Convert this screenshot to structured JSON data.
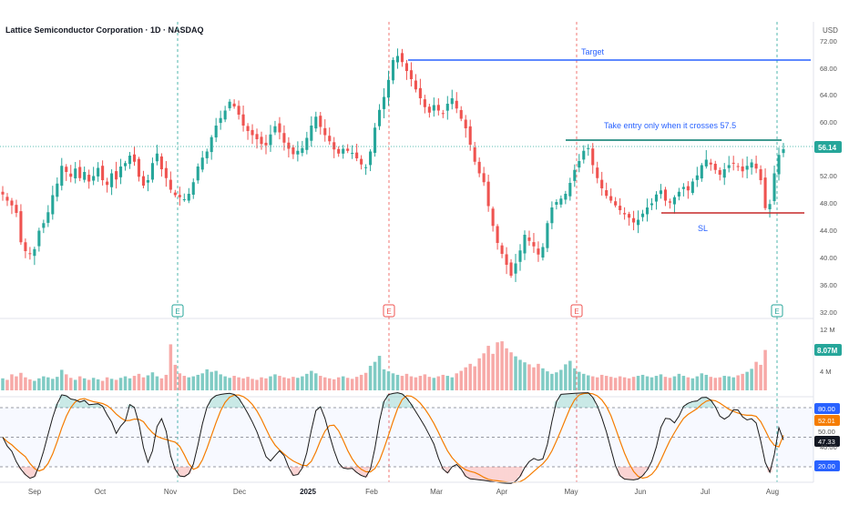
{
  "header": {
    "title": "Lattice Semiconductor Corporation · 1D · NASDAQ",
    "currency": "USD"
  },
  "colors": {
    "up": "#26a69a",
    "down": "#ef5350",
    "vol_up": "#80cbc4",
    "vol_down": "#f7a9a7",
    "target_line": "#2962ff",
    "entry_line": "#00796b",
    "sl_line": "#c62828",
    "annotation_text": "#2962ff",
    "price_badge": "#26a69a",
    "stoch_k": "#1a1a1a",
    "stoch_d": "#f57c00",
    "earnings_green": "#26a69a",
    "earnings_red": "#ef5350",
    "band_badge": "#2962ff"
  },
  "annotations": {
    "target_label": "Target",
    "entry_label": "Take entry only when it crosses 57.5",
    "sl_label": "SL"
  },
  "price_axis": {
    "ticks": [
      "72.00",
      "68.00",
      "64.00",
      "60.00",
      "56.00",
      "52.00",
      "48.00",
      "44.00",
      "40.00",
      "36.00",
      "32.00"
    ],
    "last_price": "56.14"
  },
  "volume_axis": {
    "ticks": [
      "12 M",
      "4 M"
    ],
    "last_volume": "8.07M"
  },
  "stoch_axis": {
    "upper_band": "80.00",
    "lower_band": "20.00",
    "tick_40": "40.00",
    "k_value": "47.33",
    "d_value": "52.01",
    "mid_value": "50.00"
  },
  "earnings_markers": [
    {
      "letter": "E",
      "color": "green"
    },
    {
      "letter": "E",
      "color": "red"
    },
    {
      "letter": "E",
      "color": "red"
    },
    {
      "letter": "E",
      "color": "green"
    }
  ],
  "time_axis": [
    "Sep",
    "Oct",
    "Nov",
    "Dec",
    "2025",
    "Feb",
    "Mar",
    "Apr",
    "May",
    "Jun",
    "Jul",
    "Aug"
  ],
  "chart_data": {
    "type": "candlestick",
    "title": "Lattice Semiconductor Corporation · 1D · NASDAQ",
    "y_unit": "USD",
    "price_range": [
      32,
      73
    ],
    "levels": {
      "target": 69,
      "entry": 57.5,
      "stop_loss": 46.5
    },
    "last_close": 56.14,
    "last_volume_millions": 8.07,
    "stochastic": {
      "k_last": 47.33,
      "d_last": 52.01,
      "upper": 80,
      "lower": 20
    },
    "series": [
      {
        "name": "price",
        "values": [
          49.5,
          48.6,
          47.9,
          46.8,
          42.5,
          41.2,
          40.8,
          41.5,
          44.2,
          45.3,
          46.9,
          49.4,
          51.1,
          53.7,
          52.8,
          52.1,
          53.3,
          51.9,
          52.8,
          51.4,
          52.2,
          53.4,
          51.6,
          50.9,
          52.6,
          51.7,
          53.6,
          54.1,
          55.2,
          54.3,
          52.1,
          50.8,
          51.6,
          54.1,
          55.5,
          53.2,
          51.9,
          50.2,
          49.4,
          49.1,
          48.8,
          49.6,
          51.3,
          53.6,
          54.9,
          55.8,
          57.9,
          59.6,
          60.7,
          61.8,
          63.1,
          62.4,
          61.2,
          59.6,
          58.8,
          58.2,
          57.6,
          56.9,
          56.7,
          58.3,
          59.5,
          58.6,
          57.1,
          56.2,
          55.4,
          55.9,
          56.3,
          57.8,
          59.6,
          60.9,
          59.4,
          58.2,
          57.3,
          56.1,
          55.5,
          56.2,
          55.9,
          55.6,
          54.8,
          53.9,
          53.5,
          55.8,
          59.3,
          61.9,
          63.8,
          66.3,
          69.2,
          69.8,
          68.9,
          67.6,
          66.4,
          64.9,
          63.6,
          62.3,
          61.5,
          62.6,
          61.8,
          61.4,
          62.8,
          63.6,
          62.1,
          60.6,
          59.2,
          56.8,
          54.3,
          52.6,
          51.3,
          47.8,
          44.9,
          42.4,
          40.8,
          39.2,
          37.6,
          39.4,
          41.3,
          43.6,
          42.7,
          41.9,
          40.7,
          41.8,
          45.3,
          47.6,
          48.4,
          48.9,
          49.6,
          51.2,
          53.1,
          54.4,
          55.9,
          56.3,
          53.8,
          51.9,
          50.4,
          49.3,
          48.6,
          47.9,
          47.2,
          46.6,
          46.1,
          45.4,
          45.8,
          46.7,
          47.6,
          48.2,
          49.5,
          50.1,
          48.6,
          48.3,
          49.1,
          49.9,
          50.6,
          50.1,
          51.4,
          52.3,
          53.8,
          54.6,
          53.9,
          53.1,
          52.4,
          53.2,
          53.8,
          54.1,
          53.6,
          52.9,
          53.7,
          54.2,
          53.3,
          51.6,
          47.5,
          48.1,
          52.6,
          55.3,
          56.14
        ]
      },
      {
        "name": "volume_millions",
        "values": [
          2.4,
          2.1,
          3.2,
          2.8,
          3.5,
          2.6,
          2.2,
          1.9,
          2.4,
          2.8,
          2.6,
          2.3,
          2.7,
          4.1,
          3.2,
          2.5,
          2.1,
          2.8,
          2.4,
          2.1,
          2.5,
          2.2,
          1.9,
          2.6,
          2.3,
          2.1,
          2.5,
          2.8,
          2.4,
          2.9,
          3.3,
          2.6,
          3.0,
          3.6,
          2.8,
          2.4,
          3.1,
          9.2,
          5.1,
          3.4,
          2.9,
          2.6,
          2.8,
          3.1,
          3.4,
          4.2,
          3.7,
          3.9,
          3.2,
          2.8,
          2.5,
          2.9,
          2.6,
          2.4,
          2.7,
          2.3,
          2.1,
          2.6,
          2.4,
          2.8,
          3.2,
          2.9,
          2.6,
          2.4,
          2.7,
          2.5,
          2.8,
          3.3,
          3.9,
          3.4,
          2.9,
          2.6,
          2.4,
          2.2,
          2.6,
          2.8,
          2.5,
          2.3,
          2.7,
          3.1,
          3.5,
          4.9,
          5.7,
          6.9,
          4.2,
          3.8,
          3.4,
          3.1,
          2.9,
          3.3,
          2.8,
          2.6,
          2.9,
          3.2,
          2.7,
          2.5,
          2.8,
          3.1,
          2.9,
          2.6,
          3.4,
          3.9,
          4.6,
          5.3,
          4.8,
          6.4,
          7.4,
          8.9,
          7.3,
          9.6,
          9.8,
          8.4,
          7.6,
          6.8,
          6.1,
          5.6,
          5.2,
          4.6,
          5.3,
          4.4,
          3.8,
          3.3,
          3.6,
          4.1,
          5.2,
          5.9,
          4.4,
          3.7,
          3.3,
          3.0,
          2.8,
          2.6,
          3.1,
          2.9,
          2.7,
          2.5,
          2.8,
          2.6,
          2.4,
          2.7,
          2.9,
          3.1,
          2.8,
          2.6,
          2.9,
          3.2,
          2.7,
          2.5,
          2.8,
          3.3,
          2.9,
          2.6,
          2.4,
          2.8,
          3.4,
          3.1,
          2.7,
          2.5,
          2.6,
          2.9,
          2.8,
          2.6,
          3.0,
          3.3,
          3.7,
          4.3,
          5.7,
          5.1,
          8.07
        ]
      }
    ]
  }
}
